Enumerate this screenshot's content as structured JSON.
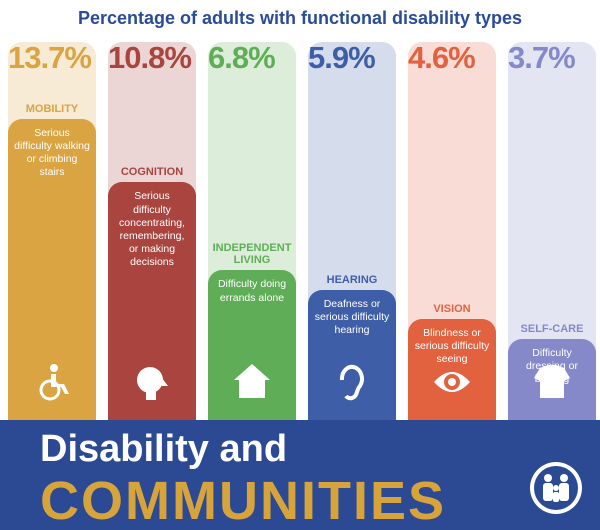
{
  "chart_data": {
    "type": "bar",
    "title": "Percentage of adults with functional disability types",
    "categories": [
      "MOBILITY",
      "COGNITION",
      "INDEPENDENT LIVING",
      "HEARING",
      "VISION",
      "SELF-CARE"
    ],
    "descriptions": [
      "Serious difficulty walking or climbing stairs",
      "Serious difficulty concentrating, remembering, or making decisions",
      "Difficulty doing errands alone",
      "Deafness or serious difficulty hearing",
      "Blindness or serious difficulty seeing",
      "Difficulty dressing or bathing"
    ],
    "values": [
      13.7,
      10.8,
      6.8,
      5.9,
      4.6,
      3.7
    ],
    "value_labels": [
      "13.7%",
      "10.8%",
      "6.8%",
      "5.9%",
      "4.6%",
      "3.7%"
    ],
    "colors": [
      "#d9a441",
      "#a9443f",
      "#5fae57",
      "#3f5ea8",
      "#e2613f",
      "#8589c9"
    ],
    "ylim": [
      0,
      16
    ]
  },
  "banner": {
    "line1": "Disability and",
    "line2": "COMMUNITIES"
  }
}
